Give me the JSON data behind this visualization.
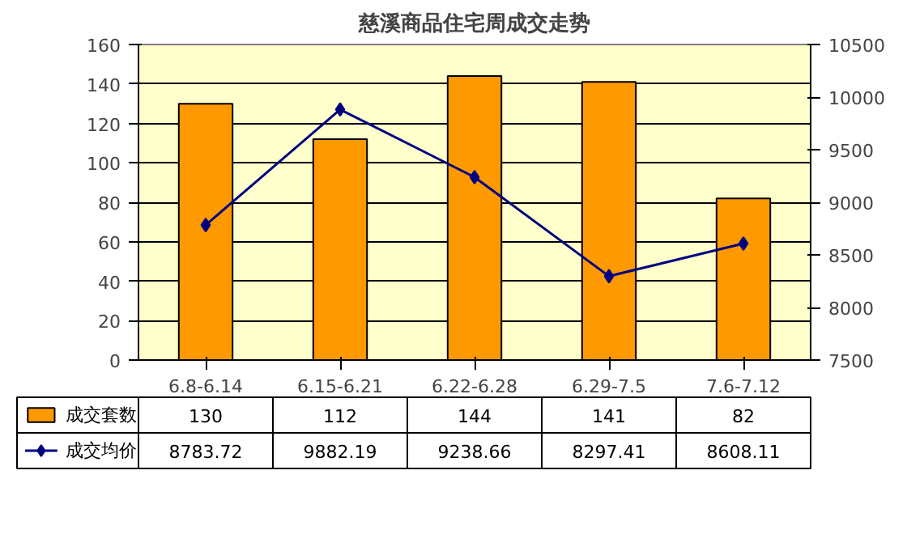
{
  "chart_data": {
    "type": "bar",
    "title": "慈溪商品住宅周成交走势",
    "categories": [
      "6.8-6.14",
      "6.15-6.21",
      "6.22-6.28",
      "6.29-7.5",
      "7.6-7.12"
    ],
    "series": [
      {
        "name": "成交套数",
        "color": "#ff9900",
        "values": [
          130,
          112,
          144,
          141,
          82
        ]
      },
      {
        "name": "成交均价",
        "type": "line",
        "axis": "y2",
        "color": "#000080",
        "marker": "diamond",
        "values": [
          8783.72,
          9882.19,
          9238.66,
          8297.41,
          8608.11
        ]
      }
    ],
    "ylim": [
      0,
      160
    ],
    "yticks": [
      0,
      20,
      40,
      60,
      80,
      100,
      120,
      140,
      160
    ],
    "y2lim": [
      7500,
      10500
    ],
    "y2ticks": [
      7500,
      8000,
      8500,
      9000,
      9500,
      10000,
      10500
    ],
    "grid": "y",
    "legend": "bottom",
    "data_labels": true
  }
}
